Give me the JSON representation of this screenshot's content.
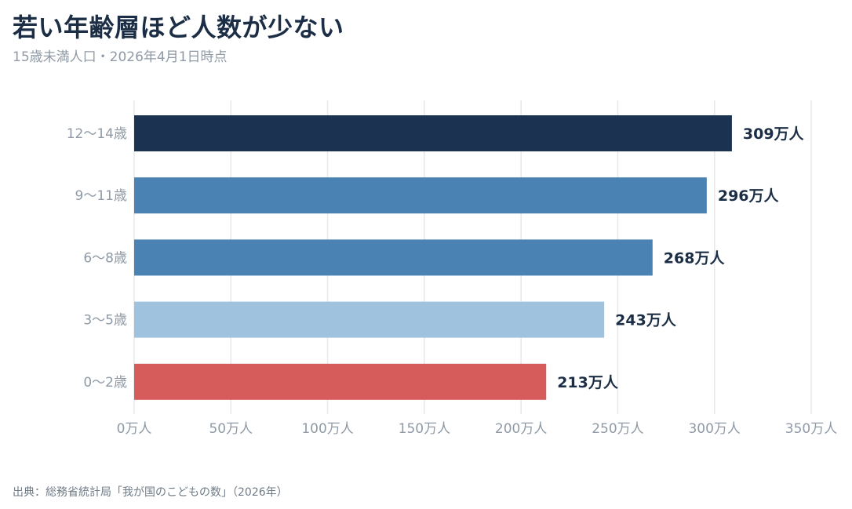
{
  "header": {
    "title": "若い年齢層ほど人数が少ない",
    "subtitle": "15歳未満人口・2026年4月1日時点"
  },
  "footer": {
    "source": "出典：総務省統計局「我が国のこどもの数」（2026年）"
  },
  "chart_data": {
    "type": "bar",
    "orientation": "horizontal",
    "categories": [
      "12〜14歳",
      "9〜11歳",
      "6〜8歳",
      "3〜5歳",
      "0〜2歳"
    ],
    "values": [
      309,
      296,
      268,
      243,
      213
    ],
    "value_labels": [
      "309万人",
      "296万人",
      "268万人",
      "243万人",
      "213万人"
    ],
    "colors": [
      "#1b3350",
      "#4a82b4",
      "#4a82b4",
      "#9fc2df",
      "#d65b5b"
    ],
    "xlim": [
      0,
      350
    ],
    "x_ticks": [
      0,
      50,
      100,
      150,
      200,
      250,
      300,
      350
    ],
    "x_tick_labels": [
      "0万人",
      "50万人",
      "100万人",
      "150万人",
      "200万人",
      "250万人",
      "300万人",
      "350万人"
    ],
    "grid": true,
    "title": "若い年齢層ほど人数が少ない",
    "xlabel": "",
    "ylabel": ""
  }
}
